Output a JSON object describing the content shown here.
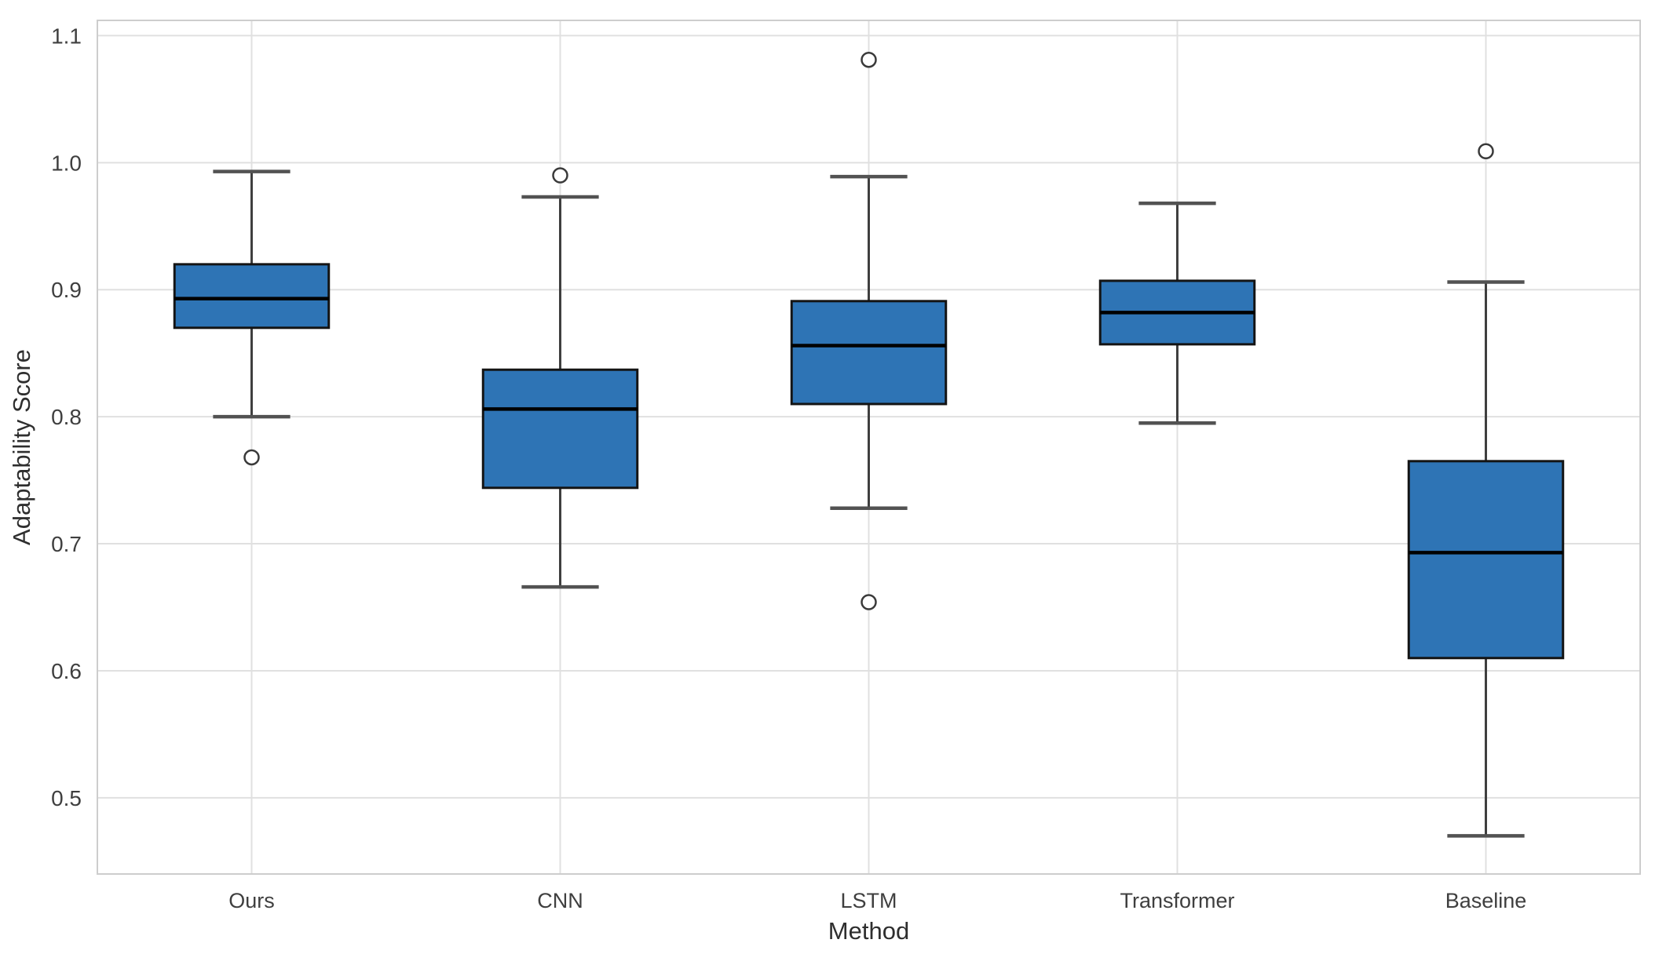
{
  "chart_data": {
    "type": "boxplot",
    "title": "",
    "xlabel": "Method",
    "ylabel": "Adaptability Score",
    "categories": [
      "Ours",
      "CNN",
      "LSTM",
      "Transformer",
      "Baseline"
    ],
    "yticks": [
      "0.5",
      "0.6",
      "0.7",
      "0.8",
      "0.9",
      "1.0",
      "1.1"
    ],
    "ylim": [
      0.44,
      1.112
    ],
    "grid": true,
    "vertical_gridlines": true,
    "legend": false,
    "series": [
      {
        "name": "Ours",
        "whisker_low": 0.8,
        "q1": 0.87,
        "median": 0.893,
        "q3": 0.92,
        "whisker_high": 0.993,
        "outliers": [
          0.768
        ]
      },
      {
        "name": "CNN",
        "whisker_low": 0.666,
        "q1": 0.744,
        "median": 0.806,
        "q3": 0.837,
        "whisker_high": 0.973,
        "outliers": [
          0.99
        ]
      },
      {
        "name": "LSTM",
        "whisker_low": 0.728,
        "q1": 0.81,
        "median": 0.856,
        "q3": 0.891,
        "whisker_high": 0.989,
        "outliers": [
          1.081,
          0.654
        ]
      },
      {
        "name": "Transformer",
        "whisker_low": 0.795,
        "q1": 0.857,
        "median": 0.882,
        "q3": 0.907,
        "whisker_high": 0.968,
        "outliers": []
      },
      {
        "name": "Baseline",
        "whisker_low": 0.47,
        "q1": 0.61,
        "median": 0.693,
        "q3": 0.765,
        "whisker_high": 0.906,
        "outliers": [
          1.009
        ]
      }
    ],
    "colors": {
      "box_fill": "#2e74b5",
      "box_edge": "#141414",
      "median": "#000000",
      "whisker": "#3f3f3f",
      "cap": "#525252",
      "outlier_edge": "#3a3a3a",
      "outlier_fill": "#ffffff",
      "grid": "#e0e0e0",
      "border": "#cdcdcd",
      "tick_label": "#3f3f3f",
      "axis_label": "#2e2e2e",
      "background": "#ffffff"
    }
  }
}
